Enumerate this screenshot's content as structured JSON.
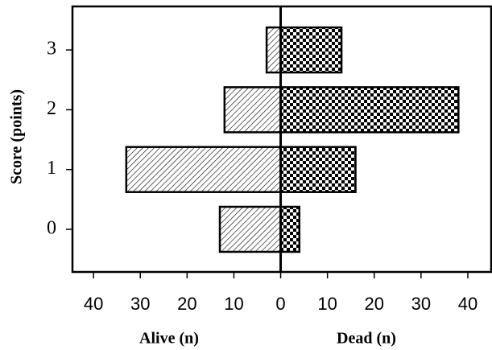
{
  "chart_data": {
    "type": "butterfly-bar",
    "ylabel": "Score (points)",
    "categories": [
      "0",
      "1",
      "2",
      "3"
    ],
    "series": [
      {
        "name": "Alive (n)",
        "pattern": "hatch",
        "color": "#000000",
        "values": [
          -13,
          -33,
          -12,
          -3
        ]
      },
      {
        "name": "Dead (n)",
        "pattern": "checker",
        "color": "#000000",
        "values": [
          4,
          16,
          38,
          13
        ]
      }
    ],
    "xlim": [
      -44.5,
      45
    ],
    "xticks": [
      {
        "value": -40,
        "label": "40"
      },
      {
        "value": -30,
        "label": "30"
      },
      {
        "value": -20,
        "label": "20"
      },
      {
        "value": -10,
        "label": "10"
      },
      0,
      10,
      20,
      30,
      40
    ]
  }
}
